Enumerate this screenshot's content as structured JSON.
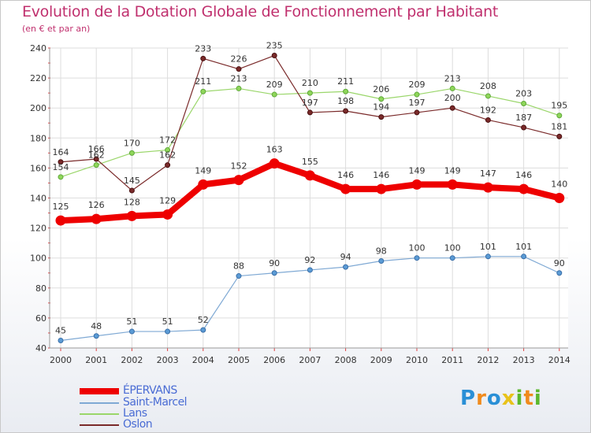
{
  "header": {
    "title": "Evolution de la Dotation Globale de Fonctionnement par Habitant",
    "subtitle": "(en € et par an)"
  },
  "chart_data": {
    "type": "line",
    "title": "Evolution de la Dotation Globale de Fonctionnement par Habitant",
    "ylabel": "(en € et par an)",
    "xlabel": "",
    "ylim": [
      40,
      240
    ],
    "yticks": [
      "40",
      "60",
      "80",
      "100",
      "120",
      "140",
      "160",
      "180",
      "200",
      "220",
      "240"
    ],
    "categories": [
      "2000",
      "2001",
      "2002",
      "2003",
      "2004",
      "2005",
      "2006",
      "2007",
      "2008",
      "2009",
      "2010",
      "2011",
      "2012",
      "2013",
      "2014"
    ],
    "series": [
      {
        "name": "ÉPERVANS",
        "color": "#ee0000",
        "values": [
          125,
          126,
          128,
          129,
          149,
          152,
          163,
          155,
          146,
          146,
          149,
          149,
          147,
          146,
          140
        ]
      },
      {
        "name": "Saint-Marcel",
        "color": "#7fa9d4",
        "values": [
          45,
          48,
          51,
          51,
          52,
          88,
          90,
          92,
          94,
          98,
          100,
          100,
          101,
          101,
          90
        ]
      },
      {
        "name": "Lans",
        "color": "#9ad66a",
        "values": [
          154,
          162,
          170,
          172,
          211,
          213,
          209,
          210,
          211,
          206,
          209,
          213,
          208,
          203,
          195
        ]
      },
      {
        "name": "Oslon",
        "color": "#7a2a2a",
        "values": [
          164,
          166,
          145,
          162,
          233,
          226,
          235,
          197,
          198,
          194,
          197,
          200,
          192,
          187,
          181
        ]
      }
    ],
    "legend_position": "bottom-left",
    "grid": true
  },
  "logo": {
    "text": "Proxiti",
    "letters": [
      "P",
      "r",
      "o",
      "x",
      "i",
      "t",
      "i"
    ]
  }
}
